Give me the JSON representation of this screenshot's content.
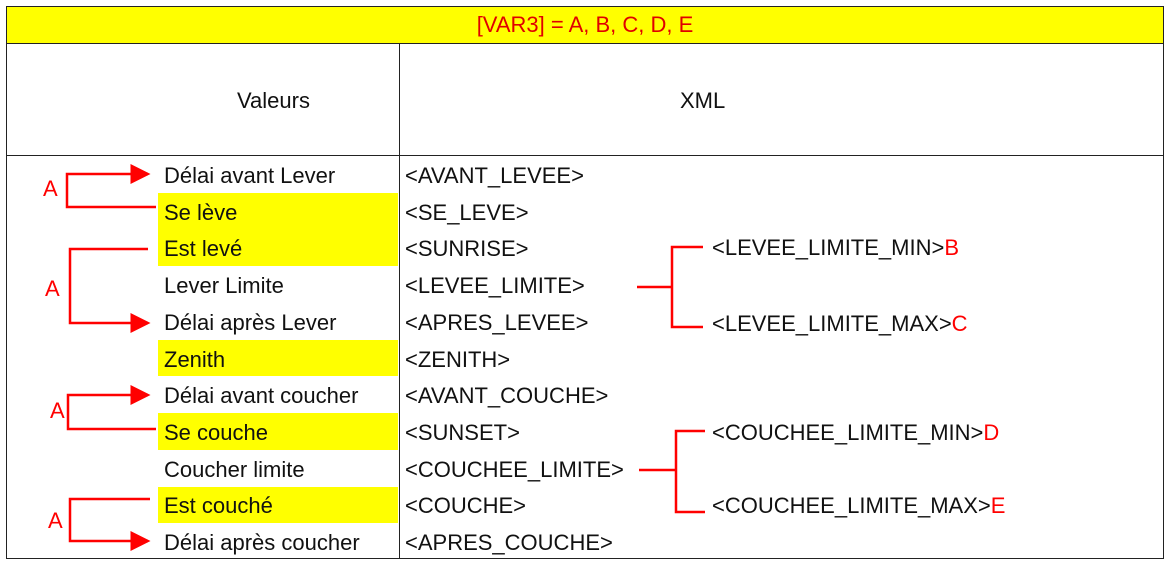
{
  "title": "[VAR3] = A, B, C, D, E",
  "headers": {
    "values": "Valeurs",
    "xml": "XML"
  },
  "rows": [
    {
      "value": "Délai avant Lever",
      "xml": "<AVANT_LEVEE>",
      "highlight": false
    },
    {
      "value": "Se lève",
      "xml": "<SE_LEVE>",
      "highlight": true
    },
    {
      "value": "Est levé",
      "xml": "<SUNRISE>",
      "highlight": true
    },
    {
      "value": "Lever Limite",
      "xml": "<LEVEE_LIMITE>",
      "highlight": false
    },
    {
      "value": "Délai après Lever",
      "xml": "<APRES_LEVEE>",
      "highlight": false
    },
    {
      "value": "Zenith",
      "xml": "<ZENITH>",
      "highlight": true
    },
    {
      "value": "Délai avant coucher",
      "xml": "<AVANT_COUCHE>",
      "highlight": false
    },
    {
      "value": "Se couche",
      "xml": "<SUNSET>",
      "highlight": true
    },
    {
      "value": "Coucher limite",
      "xml": "<COUCHEE_LIMITE>",
      "highlight": false
    },
    {
      "value": "Est couché",
      "xml": "<COUCHE>",
      "highlight": true
    },
    {
      "value": "Délai après coucher",
      "xml": "<APRES_COUCHE>",
      "highlight": false
    }
  ],
  "limits": [
    {
      "tag": "<LEVEE_LIMITE_MIN>",
      "var": "B"
    },
    {
      "tag": "<LEVEE_LIMITE_MAX>",
      "var": "C"
    },
    {
      "tag": "<COUCHEE_LIMITE_MIN>",
      "var": "D"
    },
    {
      "tag": "<COUCHEE_LIMITE_MAX>",
      "var": "E"
    }
  ],
  "arrow_labels": [
    "A",
    "A",
    "A",
    "A"
  ],
  "colors": {
    "highlight": "#ffff00",
    "annotation": "#ff0000",
    "title_text": "#e00000"
  }
}
